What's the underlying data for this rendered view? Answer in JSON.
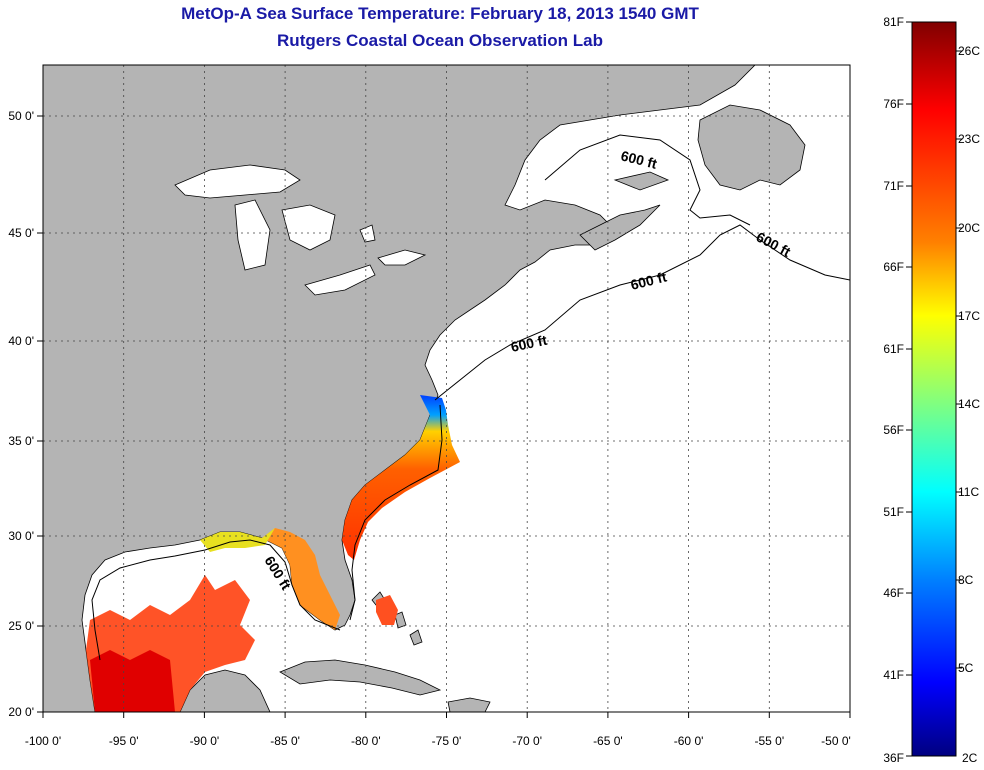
{
  "title": "MetOp-A Sea Surface Temperature:  February 18, 2013 1540 GMT",
  "subtitle": "Rutgers Coastal Ocean Observation Lab",
  "axes": {
    "lon_ticks": [
      "-100 0'",
      "-95 0'",
      "-90 0'",
      "-85 0'",
      "-80 0'",
      "-75 0'",
      "-70 0'",
      "-65 0'",
      "-60 0'",
      "-55 0'",
      "-50 0'"
    ],
    "lat_ticks": [
      "20 0'",
      "25 0'",
      "30 0'",
      "35 0'",
      "40 0'",
      "45 0'",
      "50 0'"
    ],
    "lon_range": [
      -100,
      -50
    ],
    "lat_range": [
      20,
      52.5
    ],
    "grid": "dotted"
  },
  "isobath_labels": [
    "600 ft",
    "600 ft",
    "600 ft",
    "600 ft",
    "600 ft"
  ],
  "colorbar": {
    "fahrenheit": [
      "81F",
      "76F",
      "71F",
      "66F",
      "61F",
      "56F",
      "51F",
      "46F",
      "41F",
      "36F"
    ],
    "celsius": [
      "26C",
      "23C",
      "20C",
      "17C",
      "14C",
      "11C",
      "8C",
      "5C",
      "2C"
    ],
    "colors": [
      "#800000",
      "#ff0000",
      "#ff8000",
      "#ffff00",
      "#80ff80",
      "#00ffff",
      "#0080ff",
      "#0000ff",
      "#000080"
    ]
  },
  "colors": {
    "land": "#b4b4b4",
    "ocean": "#ffffff",
    "title": "#1a1aa6"
  }
}
